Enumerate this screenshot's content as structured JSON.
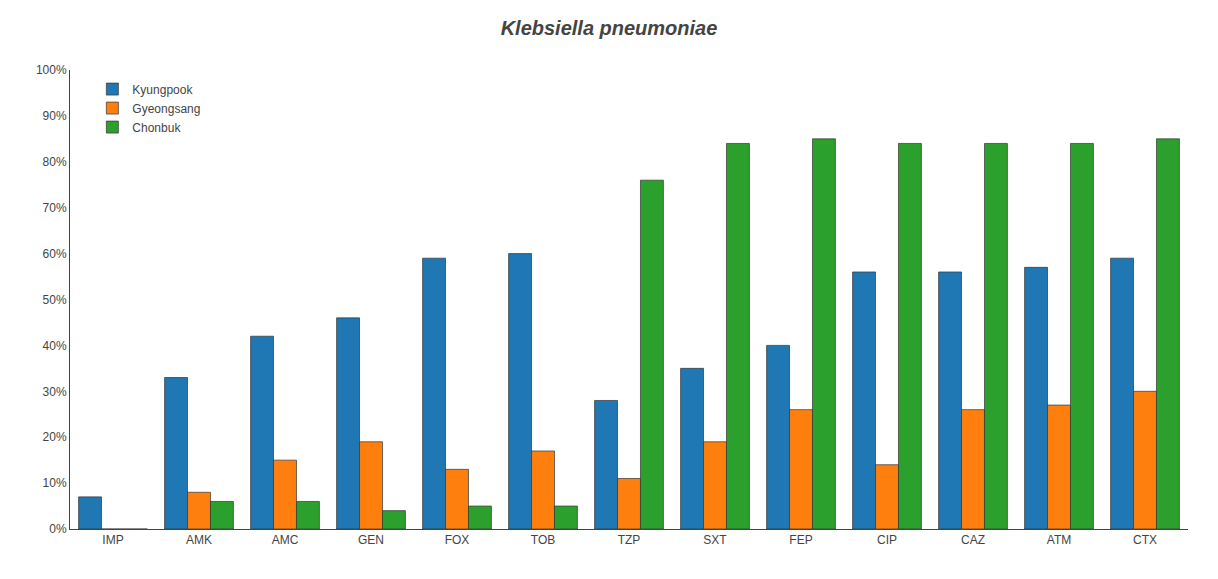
{
  "chart_data": {
    "type": "bar",
    "title": "Klebsiella pneumoniae",
    "categories": [
      "IMP",
      "AMK",
      "AMC",
      "GEN",
      "FOX",
      "TOB",
      "TZP",
      "SXT",
      "FEP",
      "CIP",
      "CAZ",
      "ATM",
      "CTX"
    ],
    "series": [
      {
        "name": "Kyungpook",
        "values": [
          7,
          33,
          42,
          46,
          59,
          60,
          28,
          35,
          40,
          56,
          56,
          57,
          59
        ]
      },
      {
        "name": "Gyeongsang",
        "values": [
          0,
          8,
          15,
          19,
          13,
          17,
          11,
          19,
          26,
          14,
          26,
          27,
          30
        ]
      },
      {
        "name": "Chonbuk",
        "values": [
          0,
          6,
          6,
          4,
          5,
          5,
          76,
          84,
          85,
          84,
          84,
          84,
          85
        ]
      }
    ],
    "ylim": [
      0,
      100
    ],
    "yticks": [
      {
        "value": 0,
        "label": "0%"
      },
      {
        "value": 10,
        "label": "10%"
      },
      {
        "value": 20,
        "label": "20%"
      },
      {
        "value": 30,
        "label": "30%"
      },
      {
        "value": 40,
        "label": "40%"
      },
      {
        "value": 50,
        "label": "50%"
      },
      {
        "value": 60,
        "label": "60%"
      },
      {
        "value": 70,
        "label": "70%"
      },
      {
        "value": 80,
        "label": "80%"
      },
      {
        "value": 90,
        "label": "90%"
      },
      {
        "value": 100,
        "label": "100%"
      }
    ],
    "grid": false,
    "legend": "upper left"
  }
}
